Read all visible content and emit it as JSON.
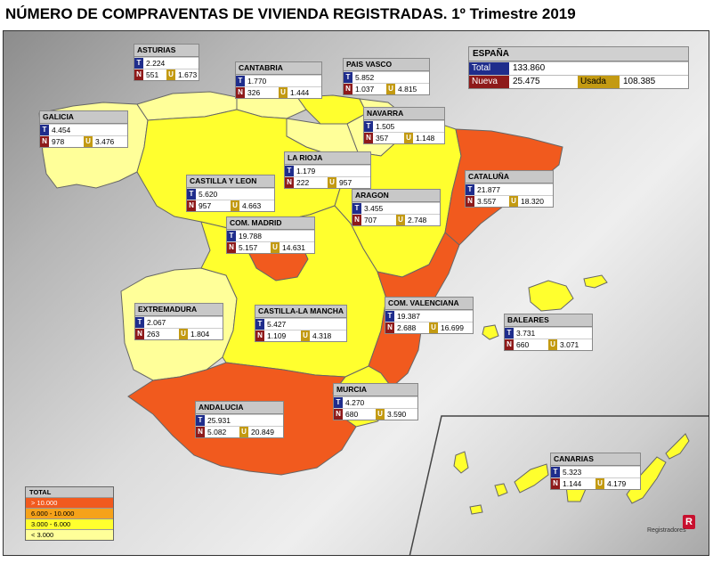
{
  "title": "NÚMERO DE COMPRAVENTAS DE VIVIENDA REGISTRADAS.  1º Trimestre 2019",
  "colors": {
    "over_10000": "#f15a1e",
    "from_6000_to_10000": "#f6a21a",
    "from_3000_to_6000": "#ffff2e",
    "under_3000": "#ffff99",
    "tag_total": "#1f2d8c",
    "tag_nueva": "#8e1a1a",
    "tag_usada": "#c39a12"
  },
  "spain": {
    "name": "ESPAÑA",
    "total_label": "Total",
    "total": "133.860",
    "nueva_label": "Nueva",
    "nueva": "25.475",
    "usada_label": "Usada",
    "usada": "108.385"
  },
  "tags": {
    "t": "T",
    "n": "N",
    "u": "U"
  },
  "regions": {
    "asturias": {
      "name": "ASTURIAS",
      "total": "2.224",
      "nueva": "551",
      "usada": "1.673"
    },
    "cantabria": {
      "name": "CANTABRIA",
      "total": "1.770",
      "nueva": "326",
      "usada": "1.444"
    },
    "pais_vasco": {
      "name": "PAIS VASCO",
      "total": "5.852",
      "nueva": "1.037",
      "usada": "4.815"
    },
    "galicia": {
      "name": "GALICIA",
      "total": "4.454",
      "nueva": "978",
      "usada": "3.476"
    },
    "navarra": {
      "name": "NAVARRA",
      "total": "1.505",
      "nueva": "357",
      "usada": "1.148"
    },
    "la_rioja": {
      "name": "LA RIOJA",
      "total": "1.179",
      "nueva": "222",
      "usada": "957"
    },
    "cataluna": {
      "name": "CATALUÑA",
      "total": "21.877",
      "nueva": "3.557",
      "usada": "18.320"
    },
    "castilla_leon": {
      "name": "CASTILLA Y LEON",
      "total": "5.620",
      "nueva": "957",
      "usada": "4.663"
    },
    "aragon": {
      "name": "ARAGON",
      "total": "3.455",
      "nueva": "707",
      "usada": "2.748"
    },
    "madrid": {
      "name": "COM. MADRID",
      "total": "19.788",
      "nueva": "5.157",
      "usada": "14.631"
    },
    "extremadura": {
      "name": "EXTREMADURA",
      "total": "2.067",
      "nueva": "263",
      "usada": "1.804"
    },
    "castilla_mancha": {
      "name": "CASTILLA-LA MANCHA",
      "total": "5.427",
      "nueva": "1.109",
      "usada": "4.318"
    },
    "valenciana": {
      "name": "COM. VALENCIANA",
      "total": "19.387",
      "nueva": "2.688",
      "usada": "16.699"
    },
    "baleares": {
      "name": "BALEARES",
      "total": "3.731",
      "nueva": "660",
      "usada": "3.071"
    },
    "murcia": {
      "name": "MURCIA",
      "total": "4.270",
      "nueva": "680",
      "usada": "3.590"
    },
    "andalucia": {
      "name": "ANDALUCIA",
      "total": "25.931",
      "nueva": "5.082",
      "usada": "20.849"
    },
    "canarias": {
      "name": "CANARIAS",
      "total": "5.323",
      "nueva": "1.144",
      "usada": "4.179"
    }
  },
  "legend": {
    "title": "TOTAL",
    "items": [
      "> 10.000",
      "6.000 - 10.000",
      "3.000 - 6.000",
      "< 3.000"
    ]
  },
  "logo_text": "Registradores"
}
